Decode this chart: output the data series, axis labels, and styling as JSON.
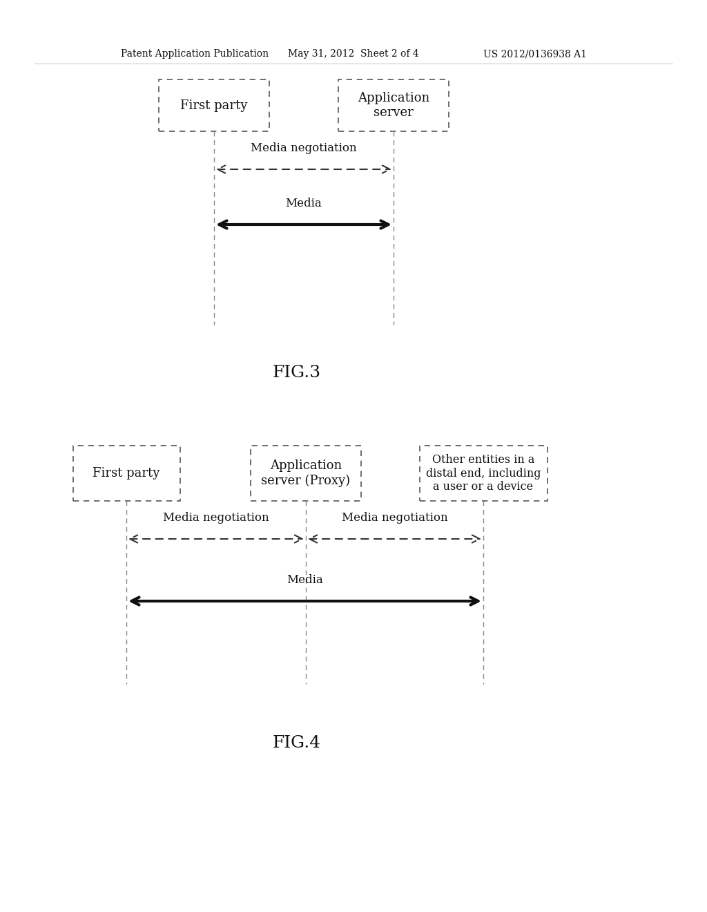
{
  "bg_color": "#ffffff",
  "header_left": "Patent Application Publication",
  "header_mid": "May 31, 2012  Sheet 2 of 4",
  "header_right": "US 2012/0136938 A1",
  "fig3_label": "FIG.3",
  "fig3_box1_label": "First party",
  "fig3_box2_label": "Application\nserver",
  "fig3_arrow1_label": "Media negotiation",
  "fig3_arrow2_label": "Media",
  "fig4_label": "FIG.4",
  "fig4_box1_label": "First party",
  "fig4_box2_label": "Application\nserver (Proxy)",
  "fig4_box3_label": "Other entities in a\ndistal end, including\na user or a device",
  "fig4_arrow1_label": "Media negotiation",
  "fig4_arrow2_label": "Media negotiation",
  "fig4_arrow3_label": "Media"
}
